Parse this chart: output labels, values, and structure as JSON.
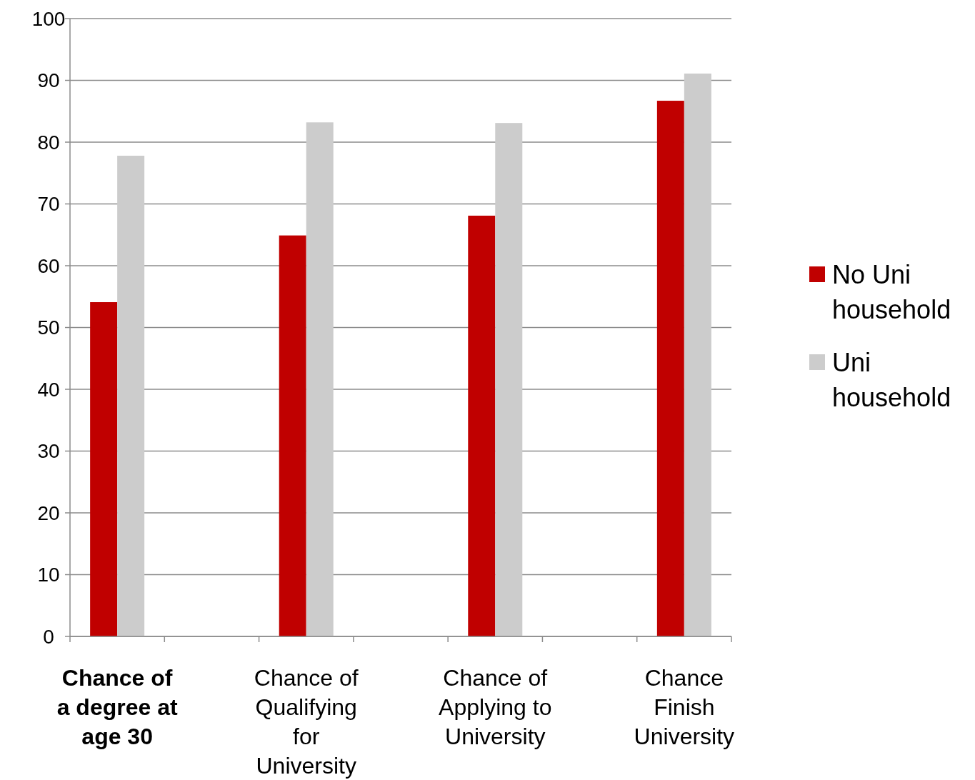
{
  "chart_data": {
    "type": "bar",
    "categories": [
      "Chance of a degree at age 30",
      null,
      "Chance of Qualifying for University",
      null,
      "Chance of Applying to University",
      null,
      "Chance Finish University"
    ],
    "series": [
      {
        "name": "No Uni household",
        "color": "#c00000",
        "values": [
          54.1,
          null,
          64.9,
          null,
          68.1,
          null,
          86.7
        ]
      },
      {
        "name": "Uni household",
        "color": "#cccccc",
        "values": [
          77.8,
          null,
          83.2,
          null,
          83.1,
          null,
          91.1
        ]
      }
    ],
    "ylim": [
      0,
      100
    ],
    "yticks": [
      0,
      10,
      20,
      30,
      40,
      50,
      60,
      70,
      80,
      90,
      100
    ],
    "grid": "y",
    "legend": "right"
  }
}
